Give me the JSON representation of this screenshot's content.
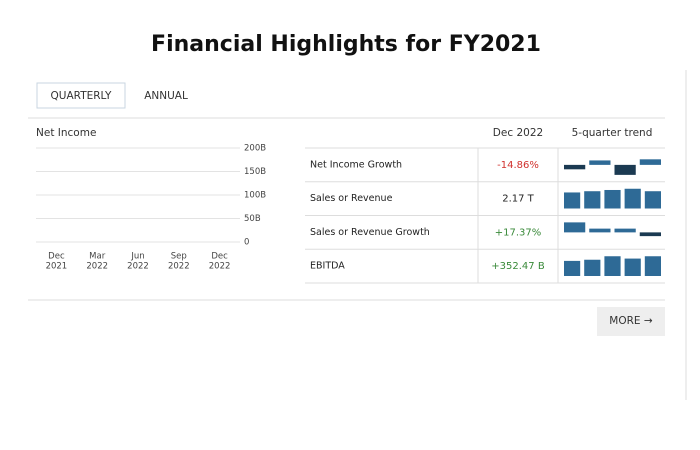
{
  "header": {
    "title": "Financial Highlights for FY2021"
  },
  "tabs": [
    "QUARTERLY",
    "ANNUAL"
  ],
  "active_tab": 0,
  "net_income_chart": {
    "title": "Net Income",
    "ylim": [
      0,
      200
    ],
    "yticks": [
      {
        "value": 200,
        "label": "200B"
      },
      {
        "value": 150,
        "label": "150B"
      },
      {
        "value": 100,
        "label": "100B"
      },
      {
        "value": 50,
        "label": "50B"
      },
      0
    ],
    "x_labels": [
      {
        "month": "Dec",
        "year": "2021"
      },
      {
        "month": "Mar",
        "year": "2022"
      },
      {
        "month": "Jun",
        "year": "2022"
      },
      {
        "month": "Sep",
        "year": "2022"
      },
      {
        "month": "Dec",
        "year": "2022"
      }
    ]
  },
  "table": {
    "columns": [
      "Dec 2022",
      "5-quarter trend"
    ],
    "rows": [
      {
        "name": "Net Income Growth",
        "value": "-14.86%",
        "color": "#d0312d",
        "trend": [
          -4,
          4,
          -9,
          5
        ]
      },
      {
        "name": "Sales or Revenue",
        "value": "2.17 T",
        "color": "#222222",
        "trend": [
          13,
          14,
          15,
          16,
          14
        ]
      },
      {
        "name": "Sales or Revenue Growth",
        "value": "+17.37%",
        "color": "#3a8a3a",
        "trend": [
          8,
          3,
          3,
          -3
        ]
      },
      {
        "name": "EBITDA",
        "value": "+352.47 B",
        "color": "#3a8a3a",
        "trend": [
          13,
          14,
          17,
          15,
          17
        ]
      }
    ]
  },
  "more_button": "MORE →"
}
